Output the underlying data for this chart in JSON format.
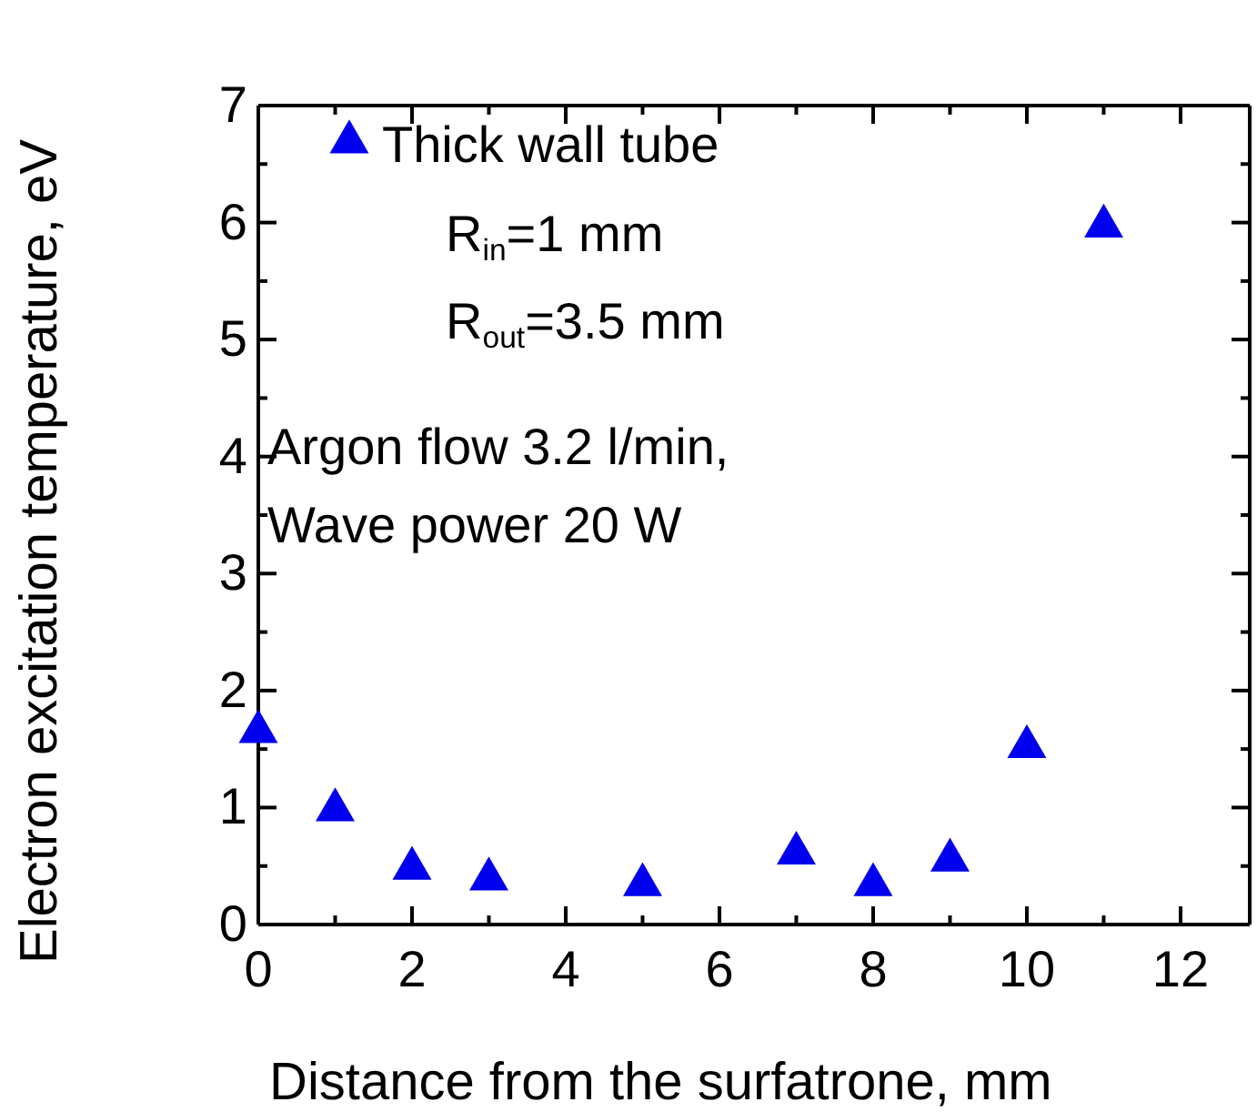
{
  "chart_data": {
    "type": "scatter",
    "xlabel": "Distance from the surfatrone, mm",
    "ylabel": "Electron excitation temperature, eV",
    "x": [
      0,
      1,
      2,
      3,
      5,
      7,
      8,
      9,
      10,
      11
    ],
    "series": [
      {
        "name": "Thick wall tube",
        "color": "#0000ee",
        "values": [
          1.68,
          1.01,
          0.51,
          0.42,
          0.37,
          0.64,
          0.37,
          0.58,
          1.55,
          6.0
        ]
      }
    ],
    "xlim": [
      0,
      12.9
    ],
    "xticks": [
      0,
      2,
      4,
      6,
      8,
      10,
      12
    ],
    "ylim": [
      0,
      7
    ],
    "yticks": [
      0,
      1,
      2,
      3,
      4,
      5,
      6,
      7
    ],
    "marker": "triangle",
    "legend": "top left",
    "grid": false,
    "annotations": [
      "R$_{in}$=1 mm",
      "R$_{out}$=3.5 mm",
      "Argon flow 3.2 l/min,",
      "Wave power 20 W"
    ]
  }
}
